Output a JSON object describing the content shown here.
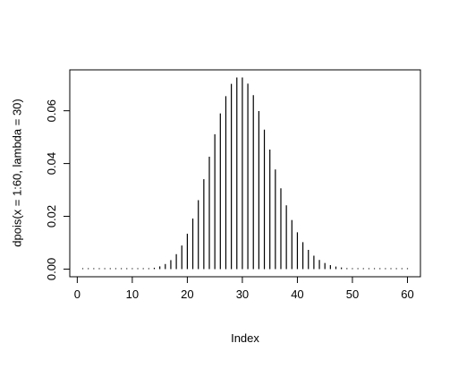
{
  "chart_data": {
    "type": "spike",
    "x": [
      1,
      2,
      3,
      4,
      5,
      6,
      7,
      8,
      9,
      10,
      11,
      12,
      13,
      14,
      15,
      16,
      17,
      18,
      19,
      20,
      21,
      22,
      23,
      24,
      25,
      26,
      27,
      28,
      29,
      30,
      31,
      32,
      33,
      34,
      35,
      36,
      37,
      38,
      39,
      40,
      41,
      42,
      43,
      44,
      45,
      46,
      47,
      48,
      49,
      50,
      51,
      52,
      53,
      54,
      55,
      56,
      57,
      58,
      59,
      60
    ],
    "values": [
      0,
      0,
      0,
      0,
      0,
      0,
      4e-07,
      1.5e-06,
      5.1e-06,
      1.52e-05,
      4.15e-05,
      0.000104,
      0.00024,
      0.000513,
      0.001027,
      0.001925,
      0.003397,
      0.005662,
      0.008941,
      0.013411,
      0.019159,
      0.026126,
      0.034077,
      0.042597,
      0.051116,
      0.05898,
      0.065533,
      0.070214,
      0.072635,
      0.072635,
      0.070292,
      0.065899,
      0.059908,
      0.05286,
      0.045308,
      0.037757,
      0.030614,
      0.024169,
      0.018591,
      0.013944,
      0.010203,
      0.007288,
      0.005084,
      0.003467,
      0.002311,
      0.001507,
      0.000962,
      0.000601,
      0.000368,
      0.000221,
      0.00013,
      7.5e-05,
      4.2e-05,
      2.4e-05,
      1.3e-05,
      7e-06,
      4e-06,
      2e-06,
      1e-06,
      1e-06
    ],
    "color": "#000000",
    "xlabel": "Index",
    "ylabel": "dpois(x = 1:60, lambda = 30)",
    "xlim": [
      -1.36,
      62.36
    ],
    "xticks": [
      0,
      10,
      20,
      30,
      40,
      50,
      60
    ],
    "ylim": [
      -0.0029,
      0.0755
    ],
    "yticks": [
      {
        "value": 0,
        "label": "0.00"
      },
      {
        "value": 0.02,
        "label": "0.02"
      },
      {
        "value": 0.04,
        "label": "0.04"
      },
      {
        "value": 0.06,
        "label": "0.06"
      }
    ]
  }
}
